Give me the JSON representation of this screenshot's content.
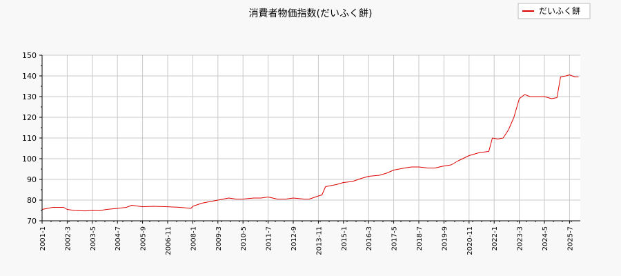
{
  "chart_data": {
    "type": "line",
    "title": "消費者物価指数(だいふく餅)",
    "xlabel": "",
    "ylabel": "",
    "ylim": [
      70,
      150
    ],
    "yticks": [
      70,
      80,
      90,
      100,
      110,
      120,
      130,
      140,
      150
    ],
    "grid": true,
    "legend_position": "top-right",
    "xtick_labels": [
      "2001-1",
      "2002-3",
      "2003-5",
      "2004-7",
      "2005-9",
      "2006-11",
      "2008-1",
      "2009-3",
      "2010-5",
      "2011-7",
      "2012-9",
      "2013-11",
      "2015-1",
      "2016-3",
      "2017-5",
      "2018-7",
      "2019-9",
      "2020-11",
      "2022-1",
      "2023-3",
      "2024-5",
      "2025-7"
    ],
    "series": [
      {
        "name": "だいふく餅",
        "color": "#dd0000",
        "x": [
          "2001-01",
          "2001-07",
          "2002-01",
          "2002-03",
          "2002-07",
          "2003-01",
          "2003-05",
          "2003-09",
          "2004-01",
          "2004-07",
          "2004-12",
          "2005-03",
          "2005-09",
          "2006-03",
          "2006-11",
          "2007-06",
          "2007-12",
          "2008-01",
          "2008-06",
          "2008-12",
          "2009-03",
          "2009-09",
          "2010-01",
          "2010-05",
          "2010-11",
          "2011-03",
          "2011-07",
          "2011-12",
          "2012-05",
          "2012-09",
          "2013-03",
          "2013-06",
          "2013-11",
          "2014-01",
          "2014-03",
          "2014-09",
          "2015-01",
          "2015-06",
          "2015-11",
          "2016-03",
          "2016-09",
          "2017-01",
          "2017-05",
          "2017-11",
          "2018-03",
          "2018-07",
          "2018-12",
          "2019-04",
          "2019-09",
          "2020-01",
          "2020-05",
          "2020-11",
          "2021-05",
          "2021-10",
          "2021-12",
          "2022-03",
          "2022-06",
          "2022-09",
          "2022-12",
          "2023-03",
          "2023-06",
          "2023-09",
          "2024-01",
          "2024-05",
          "2024-09",
          "2024-12",
          "2025-02",
          "2025-05",
          "2025-07",
          "2025-10",
          "2025-12"
        ],
        "values": [
          75.5,
          76.5,
          76.5,
          75.5,
          75.0,
          74.8,
          75.0,
          74.9,
          75.5,
          76.0,
          76.5,
          77.5,
          76.8,
          77.0,
          76.8,
          76.5,
          76.0,
          77.0,
          78.5,
          79.5,
          80.0,
          81.0,
          80.5,
          80.5,
          81.0,
          81.0,
          81.5,
          80.5,
          80.5,
          81.0,
          80.5,
          80.5,
          82.0,
          82.5,
          86.5,
          87.5,
          88.5,
          89.0,
          90.5,
          91.5,
          92.0,
          93.0,
          94.5,
          95.5,
          96.0,
          96.0,
          95.5,
          95.5,
          96.5,
          97.0,
          99.0,
          101.5,
          103.0,
          103.5,
          110.0,
          109.5,
          110.0,
          114.0,
          120.0,
          129.0,
          131.0,
          130.0,
          130.0,
          130.0,
          129.0,
          129.5,
          139.5,
          140.0,
          140.5,
          139.5,
          139.5
        ]
      }
    ]
  }
}
